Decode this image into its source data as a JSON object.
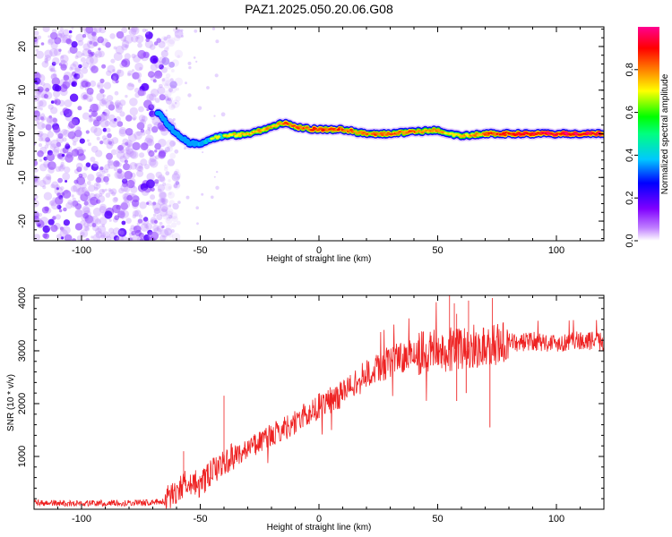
{
  "title": "PAZ1.2025.050.20.06.G08",
  "chart_data": [
    {
      "type": "heatmap",
      "xlabel": "Height of straight line (km)",
      "ylabel": "Frequency (Hz)",
      "xlim": [
        -120,
        120
      ],
      "ylim": [
        -24.5,
        24.5
      ],
      "xticks": [
        "-100",
        "-50",
        "0",
        "50",
        "100"
      ],
      "xtick_values": [
        -100,
        -50,
        0,
        50,
        100
      ],
      "yticks": [
        "-20",
        "-10",
        "0",
        "10",
        "20"
      ],
      "ytick_values": [
        -20,
        -10,
        0,
        10,
        20
      ],
      "colorbar": {
        "label": "Normalized spectral amplitude",
        "range": [
          0,
          1
        ],
        "ticks": [
          "0.0",
          "0.2",
          "0.4",
          "0.6",
          "0.8"
        ],
        "tick_values": [
          0.0,
          0.2,
          0.4,
          0.6,
          0.8
        ],
        "colors": [
          "#ffffff",
          "#8000ff",
          "#0000ff",
          "#00c8ff",
          "#00ff00",
          "#ffff00",
          "#ff8000",
          "#ff0000",
          "#ff0090"
        ]
      },
      "noise_region_x": [
        -120,
        -65
      ],
      "ridge": {
        "x": [
          -68,
          -65,
          -60,
          -55,
          -50,
          -45,
          -40,
          -30,
          -20,
          -15,
          -10,
          0,
          10,
          20,
          30,
          40,
          50,
          55,
          60,
          70,
          80,
          100,
          120
        ],
        "freq": [
          5,
          3,
          0,
          -2,
          -2.5,
          -1,
          -0.5,
          0,
          1.5,
          2.5,
          1.5,
          1,
          1,
          0,
          0,
          0.5,
          0.8,
          0,
          -0.5,
          0,
          0,
          0,
          0
        ],
        "amplitude": [
          0.25,
          0.3,
          0.4,
          0.5,
          0.55,
          0.6,
          0.65,
          0.7,
          0.75,
          0.8,
          0.8,
          0.85,
          0.85,
          0.8,
          0.8,
          0.8,
          0.75,
          0.7,
          0.7,
          0.8,
          0.9,
          0.95,
          0.95
        ]
      }
    },
    {
      "type": "line",
      "xlabel": "Height of straight line (km)",
      "ylabel": "SNR (10 * v/v)",
      "xlim": [
        -120,
        120
      ],
      "ylim": [
        0,
        4050
      ],
      "xticks": [
        "-100",
        "-50",
        "0",
        "50",
        "100"
      ],
      "xtick_values": [
        -100,
        -50,
        0,
        50,
        100
      ],
      "yticks": [
        "1000",
        "2000",
        "3000",
        "4000"
      ],
      "ytick_values": [
        1000,
        2000,
        3000,
        4000
      ],
      "color": "#ee2222",
      "envelope": {
        "x": [
          -120,
          -100,
          -80,
          -70,
          -65,
          -60,
          -55,
          -50,
          -45,
          -40,
          -30,
          -20,
          -10,
          0,
          10,
          20,
          30,
          40,
          50,
          60,
          70,
          80,
          90,
          100,
          110,
          120
        ],
        "y": [
          120,
          110,
          120,
          130,
          150,
          350,
          550,
          450,
          700,
          900,
          1150,
          1400,
          1650,
          1950,
          2200,
          2550,
          2800,
          2950,
          3000,
          3050,
          3100,
          3150,
          3180,
          3150,
          3200,
          3180
        ]
      },
      "spikes": {
        "x": [
          -57,
          -40,
          55,
          57,
          58,
          63,
          73
        ],
        "y": [
          1100,
          2150,
          4050,
          3900,
          3700,
          3950,
          4000
        ]
      }
    }
  ]
}
